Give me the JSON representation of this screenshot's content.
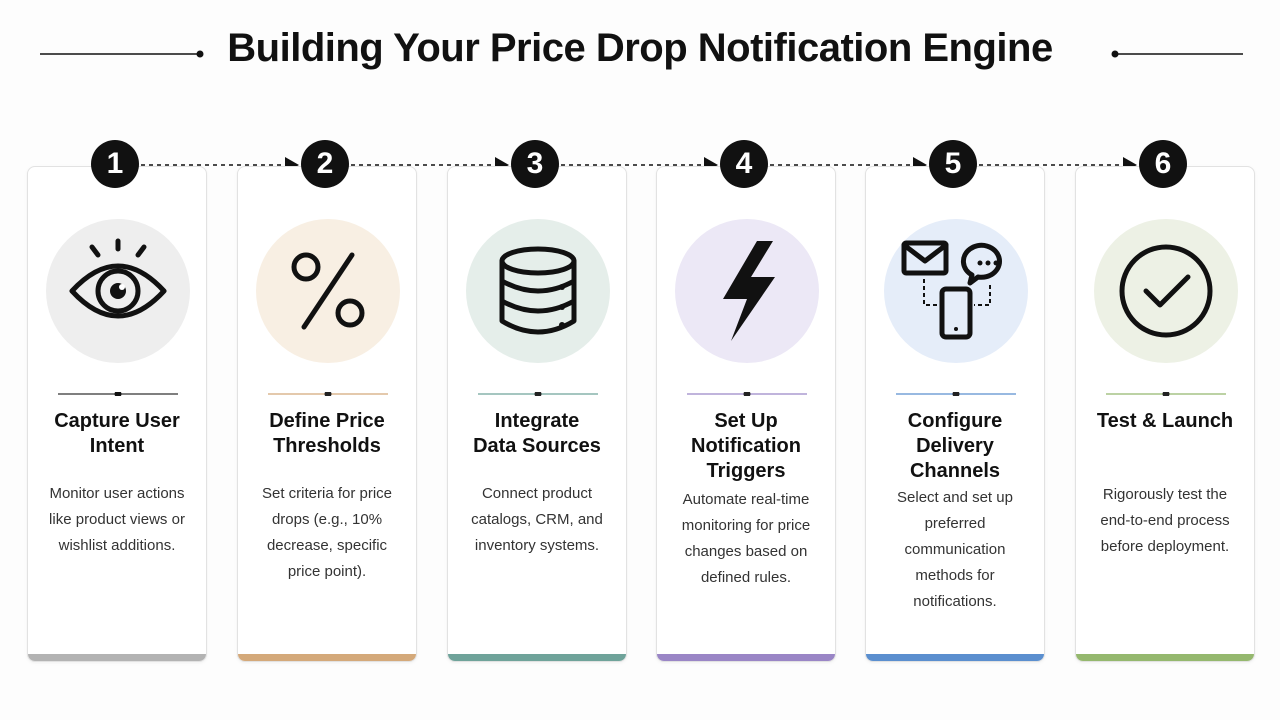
{
  "title": "Building Your Price Drop Notification Engine",
  "steps": [
    {
      "number": "1",
      "title_lines": [
        "Capture User",
        "Intent"
      ],
      "description": "Monitor user actions like product views or wishlist additions."
    },
    {
      "number": "2",
      "title_lines": [
        "Define Price",
        "Thresholds"
      ],
      "description": "Set criteria for price drops (e.g., 10% decrease, specific price point)."
    },
    {
      "number": "3",
      "title_lines": [
        "Integrate",
        "Data Sources"
      ],
      "description": "Connect product catalogs, CRM, and inventory systems."
    },
    {
      "number": "4",
      "title_lines": [
        "Set Up",
        "Notification",
        "Triggers"
      ],
      "description": "Automate real-time monitoring for price changes based on defined rules."
    },
    {
      "number": "5",
      "title_lines": [
        "Configure",
        "Delivery",
        "Channels"
      ],
      "description": "Select and set up preferred communication methods for notifications."
    },
    {
      "number": "6",
      "title_lines": [
        "Test & Launch"
      ],
      "description": "Rigorously test the end-to-end process before deployment."
    }
  ]
}
